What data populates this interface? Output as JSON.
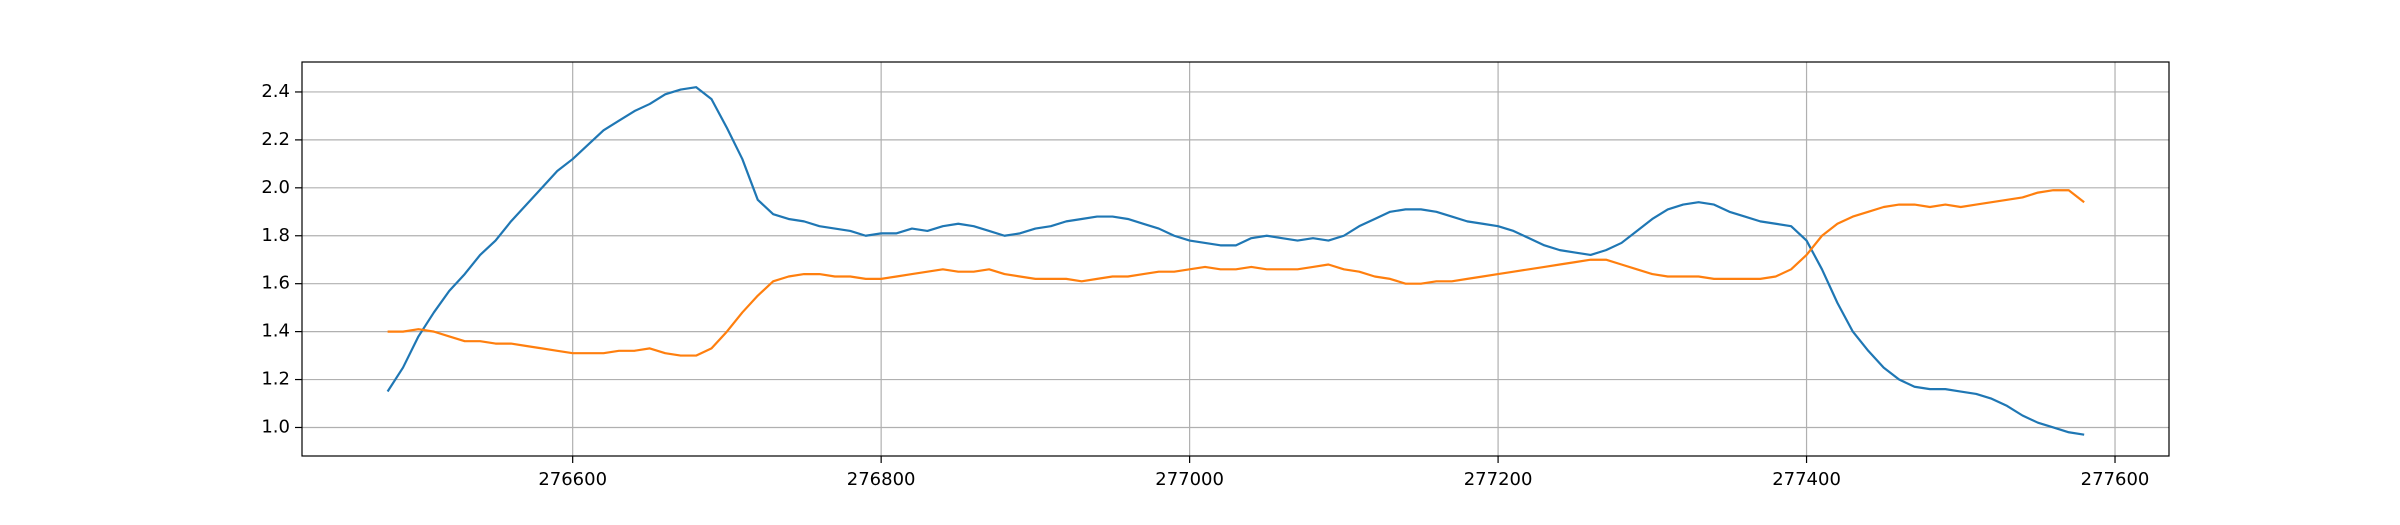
{
  "chart_data": {
    "type": "line",
    "x": [
      276480,
      276490,
      276500,
      276510,
      276520,
      276530,
      276540,
      276550,
      276560,
      276570,
      276580,
      276590,
      276600,
      276610,
      276620,
      276630,
      276640,
      276650,
      276660,
      276670,
      276680,
      276690,
      276700,
      276710,
      276720,
      276730,
      276740,
      276750,
      276760,
      276770,
      276780,
      276790,
      276800,
      276810,
      276820,
      276830,
      276840,
      276850,
      276860,
      276870,
      276880,
      276890,
      276900,
      276910,
      276920,
      276930,
      276940,
      276950,
      276960,
      276970,
      276980,
      276990,
      277000,
      277010,
      277020,
      277030,
      277040,
      277050,
      277060,
      277070,
      277080,
      277090,
      277100,
      277110,
      277120,
      277130,
      277140,
      277150,
      277160,
      277170,
      277180,
      277190,
      277200,
      277210,
      277220,
      277230,
      277240,
      277250,
      277260,
      277270,
      277280,
      277290,
      277300,
      277310,
      277320,
      277330,
      277340,
      277350,
      277360,
      277370,
      277380,
      277390,
      277400,
      277410,
      277420,
      277430,
      277440,
      277450,
      277460,
      277470,
      277480,
      277490,
      277500,
      277510,
      277520,
      277530,
      277540,
      277550,
      277560,
      277570,
      277580
    ],
    "series": [
      {
        "color": "#1f77b4",
        "values": [
          1.15,
          1.25,
          1.38,
          1.48,
          1.57,
          1.64,
          1.72,
          1.78,
          1.86,
          1.93,
          2.0,
          2.07,
          2.12,
          2.18,
          2.24,
          2.28,
          2.32,
          2.35,
          2.39,
          2.41,
          2.42,
          2.37,
          2.25,
          2.12,
          1.95,
          1.89,
          1.87,
          1.86,
          1.84,
          1.83,
          1.82,
          1.8,
          1.81,
          1.81,
          1.83,
          1.82,
          1.84,
          1.85,
          1.84,
          1.82,
          1.8,
          1.81,
          1.83,
          1.84,
          1.86,
          1.87,
          1.88,
          1.88,
          1.87,
          1.85,
          1.83,
          1.8,
          1.78,
          1.77,
          1.76,
          1.76,
          1.79,
          1.8,
          1.79,
          1.78,
          1.79,
          1.78,
          1.8,
          1.84,
          1.87,
          1.9,
          1.91,
          1.91,
          1.9,
          1.88,
          1.86,
          1.85,
          1.84,
          1.82,
          1.79,
          1.76,
          1.74,
          1.73,
          1.72,
          1.74,
          1.77,
          1.82,
          1.87,
          1.91,
          1.93,
          1.94,
          1.93,
          1.9,
          1.88,
          1.86,
          1.85,
          1.84,
          1.78,
          1.66,
          1.52,
          1.4,
          1.32,
          1.25,
          1.2,
          1.17,
          1.16,
          1.16,
          1.15,
          1.14,
          1.12,
          1.09,
          1.05,
          1.02,
          1.0,
          0.98,
          0.97
        ]
      },
      {
        "color": "#ff7f0e",
        "values": [
          1.4,
          1.4,
          1.41,
          1.4,
          1.38,
          1.36,
          1.36,
          1.35,
          1.35,
          1.34,
          1.33,
          1.32,
          1.31,
          1.31,
          1.31,
          1.32,
          1.32,
          1.33,
          1.31,
          1.3,
          1.3,
          1.33,
          1.4,
          1.48,
          1.55,
          1.61,
          1.63,
          1.64,
          1.64,
          1.63,
          1.63,
          1.62,
          1.62,
          1.63,
          1.64,
          1.65,
          1.66,
          1.65,
          1.65,
          1.66,
          1.64,
          1.63,
          1.62,
          1.62,
          1.62,
          1.61,
          1.62,
          1.63,
          1.63,
          1.64,
          1.65,
          1.65,
          1.66,
          1.67,
          1.66,
          1.66,
          1.67,
          1.66,
          1.66,
          1.66,
          1.67,
          1.68,
          1.66,
          1.65,
          1.63,
          1.62,
          1.6,
          1.6,
          1.61,
          1.61,
          1.62,
          1.63,
          1.64,
          1.65,
          1.66,
          1.67,
          1.68,
          1.69,
          1.7,
          1.7,
          1.68,
          1.66,
          1.64,
          1.63,
          1.63,
          1.63,
          1.62,
          1.62,
          1.62,
          1.62,
          1.63,
          1.66,
          1.72,
          1.8,
          1.85,
          1.88,
          1.9,
          1.92,
          1.93,
          1.93,
          1.92,
          1.93,
          1.92,
          1.93,
          1.94,
          1.95,
          1.96,
          1.98,
          1.99,
          1.99,
          1.94
        ]
      }
    ],
    "xlim": [
      276424.5,
      277635
    ],
    "ylim": [
      0.881,
      2.525
    ],
    "xticks": [
      276600,
      276800,
      277000,
      277200,
      277400,
      277600
    ],
    "yticks": [
      {
        "value": 1,
        "label": "1.0"
      },
      1.2,
      1.4,
      1.6,
      1.8,
      {
        "value": 2,
        "label": "2.0"
      },
      2.2,
      2.4
    ],
    "grid": true
  }
}
